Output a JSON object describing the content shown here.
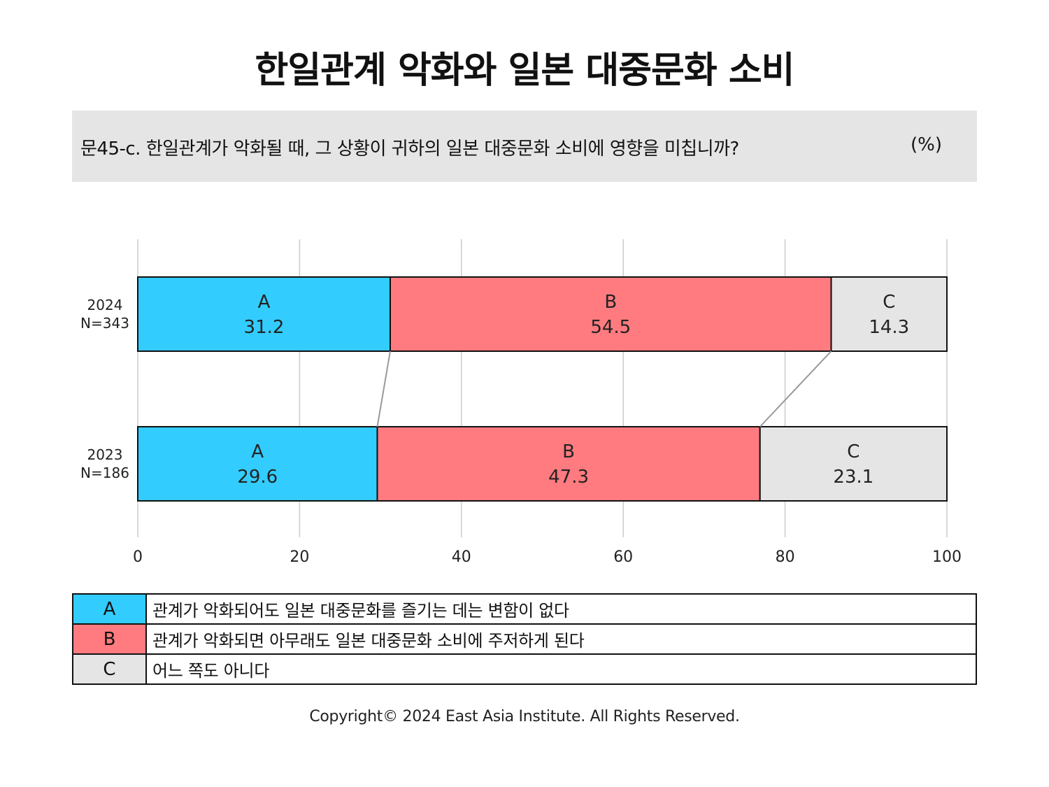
{
  "title": "한일관계 악화와 일본 대중문화 소비",
  "question": {
    "text": "문45-c. 한일관계가 악화될 때, 그 상황이 귀하의 일본 대중문화 소비에 영향을 미칩니까?",
    "unit": "(%)"
  },
  "chart_data": {
    "type": "bar",
    "orientation": "horizontal",
    "stacked": true,
    "xlim": [
      0,
      100
    ],
    "x_ticks": [
      "0",
      "20",
      "40",
      "60",
      "80",
      "100"
    ],
    "grid": true,
    "categories": [
      {
        "year": "2024",
        "n": "N=343"
      },
      {
        "year": "2023",
        "n": "N=186"
      }
    ],
    "series": [
      {
        "name": "A",
        "color": "#33ccff",
        "values": [
          31.2,
          29.6
        ],
        "labels": [
          "31.2",
          "29.6"
        ]
      },
      {
        "name": "B",
        "color": "#ff7b80",
        "values": [
          54.5,
          47.3
        ],
        "labels": [
          "54.5",
          "47.3"
        ]
      },
      {
        "name": "C",
        "color": "#e6e5e6",
        "values": [
          14.3,
          23.1
        ],
        "labels": [
          "14.3",
          "23.1"
        ]
      }
    ]
  },
  "legend": [
    {
      "key": "A",
      "color": "#33ccff",
      "text": "관계가 악화되어도 일본 대중문화를 즐기는 데는 변함이 없다"
    },
    {
      "key": "B",
      "color": "#ff7b80",
      "text": "관계가 악화되면 아무래도 일본 대중문화 소비에 주저하게 된다"
    },
    {
      "key": "C",
      "color": "#e6e5e6",
      "text": "어느 쪽도 아니다"
    }
  ],
  "copyright": "Copyright© 2024 East Asia Institute. All Rights Reserved."
}
